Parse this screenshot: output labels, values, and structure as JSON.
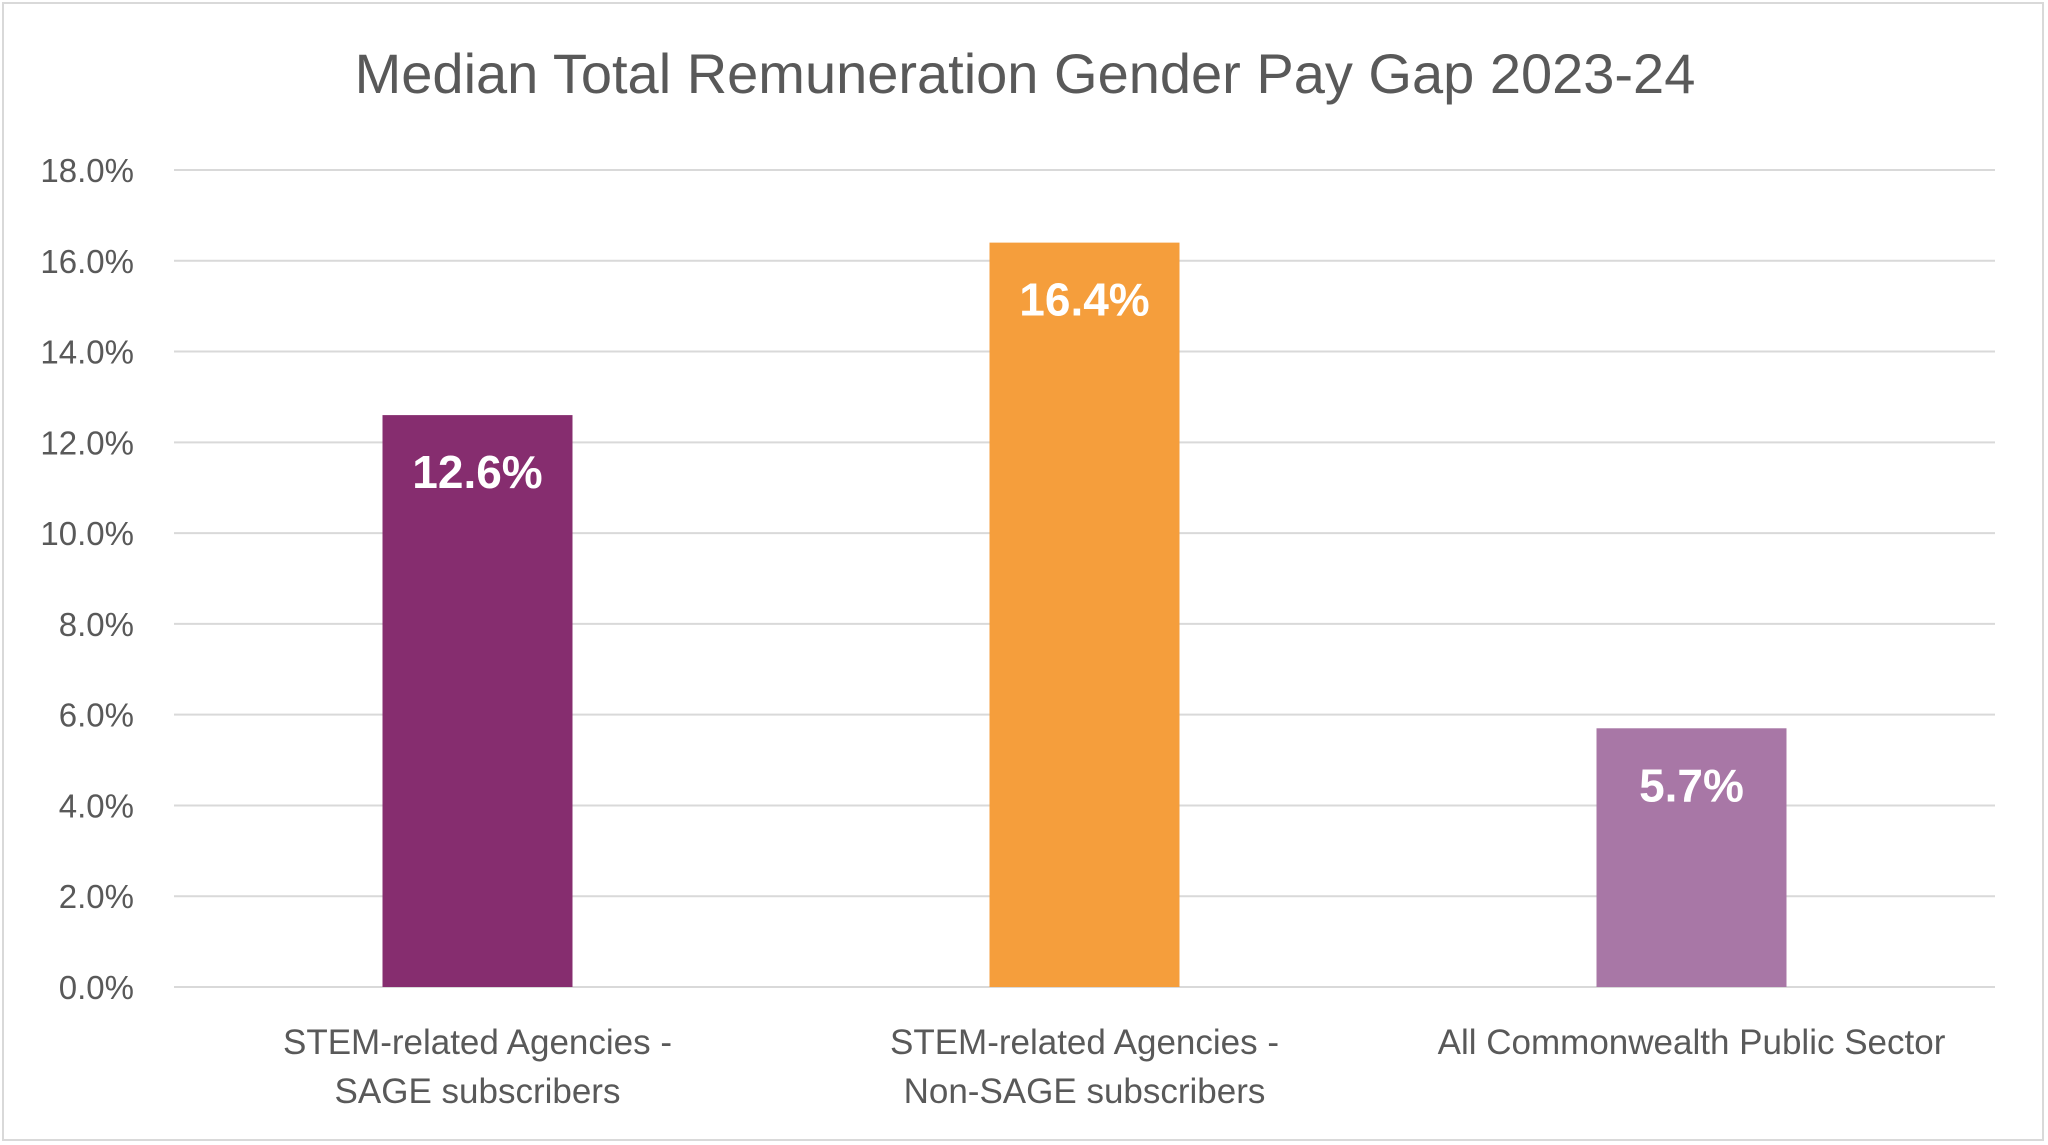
{
  "chart_data": {
    "type": "bar",
    "title": "Median Total Remuneration Gender Pay Gap 2023-24",
    "xlabel": "",
    "ylabel": "",
    "ylim": [
      0,
      18
    ],
    "yticks": [
      0,
      2,
      4,
      6,
      8,
      10,
      12,
      14,
      16,
      18
    ],
    "ytick_labels": [
      "0.0%",
      "2.0%",
      "4.0%",
      "6.0%",
      "8.0%",
      "10.0%",
      "12.0%",
      "14.0%",
      "16.0%",
      "18.0%"
    ],
    "grid": true,
    "legend": "none",
    "categories": [
      [
        "STEM-related Agencies -",
        "SAGE subscribers"
      ],
      [
        "STEM-related Agencies -",
        "Non-SAGE subscribers"
      ],
      [
        "All Commonwealth Public Sector"
      ]
    ],
    "values": [
      12.6,
      16.4,
      5.7
    ],
    "data_labels": [
      "12.6%",
      "16.4%",
      "5.7%"
    ],
    "colors": [
      "#862d6f",
      "#f59e3c",
      "#a877a6"
    ],
    "grid_color": "#d9d9d9",
    "text_color": "#595959"
  }
}
